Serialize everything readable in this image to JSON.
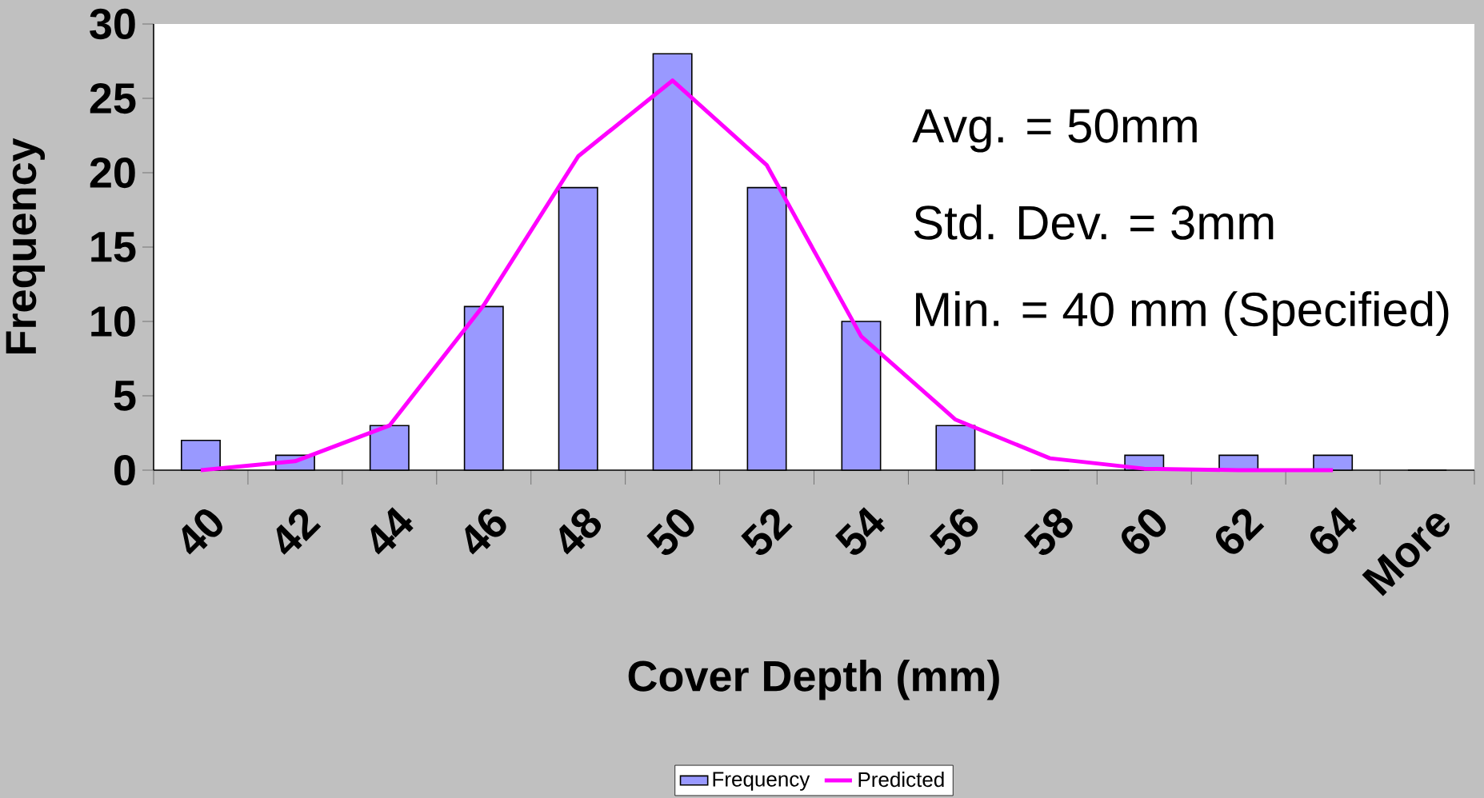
{
  "chart_data": {
    "type": "bar",
    "xlabel": "Cover Depth (mm)",
    "ylabel": "Frequency",
    "categories": [
      "40",
      "42",
      "44",
      "46",
      "48",
      "50",
      "52",
      "54",
      "56",
      "58",
      "60",
      "62",
      "64",
      "More"
    ],
    "series": [
      {
        "name": "Frequency",
        "color": "#9999ff",
        "values": [
          2,
          1,
          3,
          11,
          19,
          28,
          19,
          10,
          3,
          0,
          1,
          1,
          1,
          0
        ]
      },
      {
        "name": "Predicted",
        "type": "line",
        "color": "#ff00ff",
        "values": [
          0,
          0.6,
          3.0,
          11.1,
          21.1,
          26.2,
          20.5,
          9.0,
          3.4,
          0.8,
          0.1,
          0,
          0,
          null
        ]
      }
    ],
    "ylim": [
      0,
      30
    ],
    "yticks": [
      0,
      5,
      10,
      15,
      20,
      25,
      30
    ],
    "legend": "bottom",
    "annotations": [
      "Avg. = 50mm",
      "Std. Dev. = 3mm",
      "Min. = 40 mm (Specified)"
    ]
  }
}
